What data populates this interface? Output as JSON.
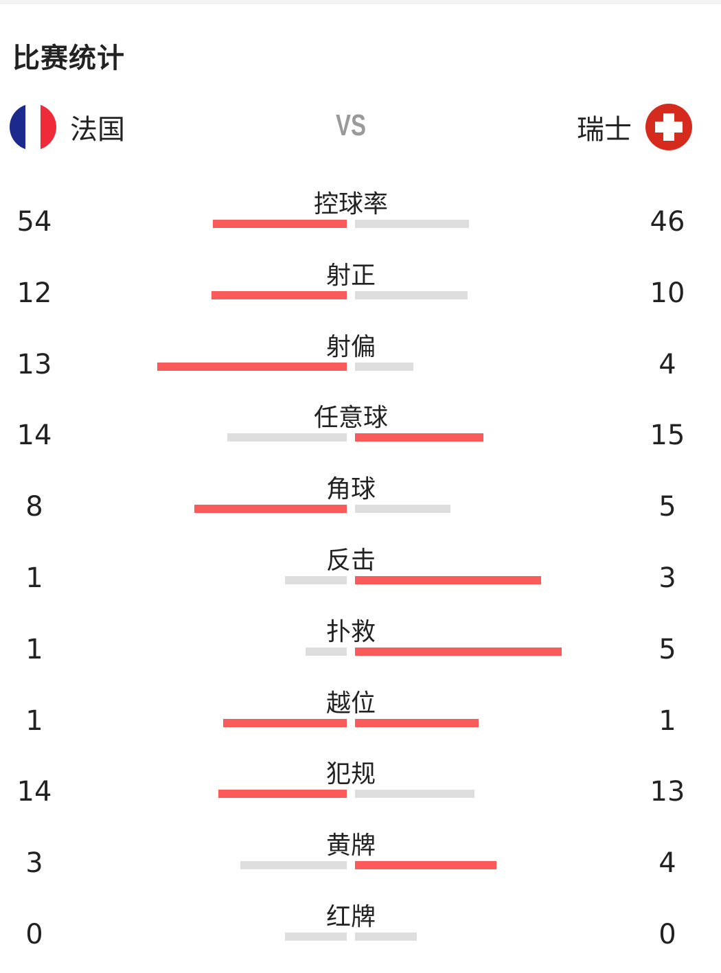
{
  "header": {
    "title": "比赛统计"
  },
  "teams": {
    "home": {
      "name": "法国",
      "flag": "france-flag",
      "flag_colors": [
        "#1b2a8c",
        "#ffffff",
        "#ef2b3a"
      ]
    },
    "vs": "VS",
    "away": {
      "name": "瑞士",
      "flag": "switzerland-flag",
      "flag_colors": [
        "#d52b1e",
        "#ffffff"
      ]
    }
  },
  "colors": {
    "leader_bar": "#fa5a5a",
    "trailing_bar": "#dedede",
    "vs_text": "#9a9a9a"
  },
  "stats": [
    {
      "label": "控球率",
      "home": "54",
      "away": "46",
      "home_bar": 195,
      "away_bar": 166,
      "home_red": true,
      "away_red": false
    },
    {
      "label": "射正",
      "home": "12",
      "away": "10",
      "home_bar": 197,
      "away_bar": 164,
      "home_red": true,
      "away_red": false
    },
    {
      "label": "射偏",
      "home": "13",
      "away": "4",
      "home_bar": 276,
      "away_bar": 85,
      "home_red": true,
      "away_red": false
    },
    {
      "label": "任意球",
      "home": "14",
      "away": "15",
      "home_bar": 174,
      "away_bar": 187,
      "home_red": false,
      "away_red": true
    },
    {
      "label": "角球",
      "home": "8",
      "away": "5",
      "home_bar": 222,
      "away_bar": 139,
      "home_red": true,
      "away_red": false
    },
    {
      "label": "反击",
      "home": "1",
      "away": "3",
      "home_bar": 90,
      "away_bar": 271,
      "home_red": false,
      "away_red": true
    },
    {
      "label": "扑救",
      "home": "1",
      "away": "5",
      "home_bar": 60,
      "away_bar": 301,
      "home_red": false,
      "away_red": true
    },
    {
      "label": "越位",
      "home": "1",
      "away": "1",
      "home_bar": 180,
      "away_bar": 180,
      "home_red": true,
      "away_red": true
    },
    {
      "label": "犯规",
      "home": "14",
      "away": "13",
      "home_bar": 187,
      "away_bar": 174,
      "home_red": true,
      "away_red": false
    },
    {
      "label": "黄牌",
      "home": "3",
      "away": "4",
      "home_bar": 155,
      "away_bar": 206,
      "home_red": false,
      "away_red": true
    },
    {
      "label": "红牌",
      "home": "0",
      "away": "0",
      "home_bar": 90,
      "away_bar": 90,
      "home_red": false,
      "away_red": false
    }
  ]
}
